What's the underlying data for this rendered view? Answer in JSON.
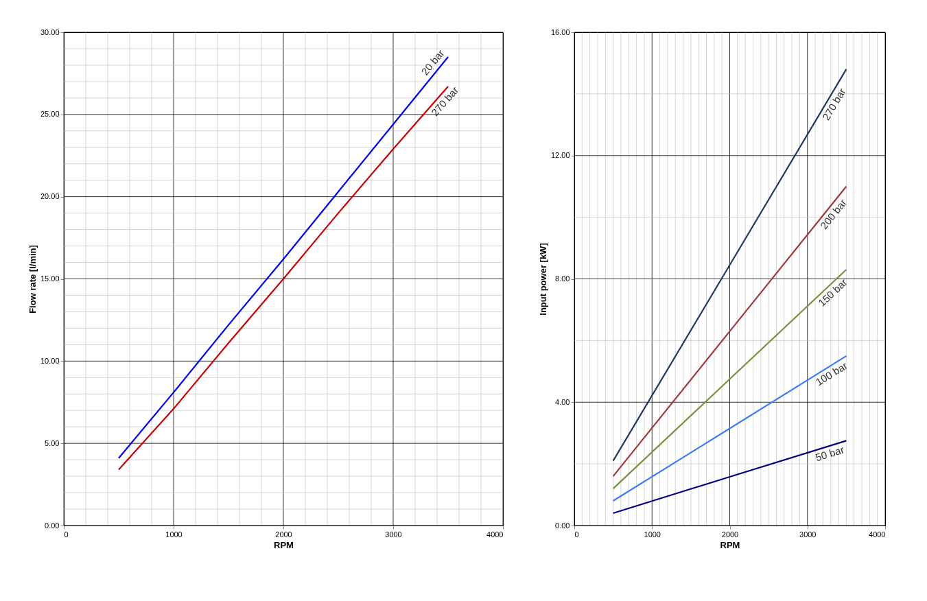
{
  "chart_data": [
    {
      "type": "line",
      "xlabel": "RPM",
      "ylabel": "Flow rate [l/min]",
      "xlim": [
        0,
        4000
      ],
      "ylim": [
        0,
        30
      ],
      "xticks": [
        0,
        {
          "value": 200,
          "label": null
        },
        {
          "value": 400,
          "label": null
        },
        {
          "value": 600,
          "label": null
        },
        {
          "value": 800,
          "label": null
        },
        1000,
        {
          "value": 1200,
          "label": null
        },
        {
          "value": 1400,
          "label": null
        },
        {
          "value": 1600,
          "label": null
        },
        {
          "value": 1800,
          "label": null
        },
        2000,
        {
          "value": 2200,
          "label": null
        },
        {
          "value": 2400,
          "label": null
        },
        {
          "value": 2600,
          "label": null
        },
        {
          "value": 2800,
          "label": null
        },
        3000,
        {
          "value": 3200,
          "label": null
        },
        {
          "value": 3400,
          "label": null
        },
        {
          "value": 3600,
          "label": null
        },
        {
          "value": 3800,
          "label": null
        },
        4000
      ],
      "yticks": [
        {
          "value": 0,
          "label": "0.00"
        },
        {
          "value": 1,
          "label": null
        },
        {
          "value": 2,
          "label": null
        },
        {
          "value": 3,
          "label": null
        },
        {
          "value": 4,
          "label": null
        },
        {
          "value": 5,
          "label": "5.00"
        },
        {
          "value": 6,
          "label": null
        },
        {
          "value": 7,
          "label": null
        },
        {
          "value": 8,
          "label": null
        },
        {
          "value": 9,
          "label": null
        },
        {
          "value": 10,
          "label": "10.00"
        },
        {
          "value": 11,
          "label": null
        },
        {
          "value": 12,
          "label": null
        },
        {
          "value": 13,
          "label": null
        },
        {
          "value": 14,
          "label": null
        },
        {
          "value": 15,
          "label": "15.00"
        },
        {
          "value": 16,
          "label": null
        },
        {
          "value": 17,
          "label": null
        },
        {
          "value": 18,
          "label": null
        },
        {
          "value": 19,
          "label": null
        },
        {
          "value": 20,
          "label": "20.00"
        },
        {
          "value": 21,
          "label": null
        },
        {
          "value": 22,
          "label": null
        },
        {
          "value": 23,
          "label": null
        },
        {
          "value": 24,
          "label": null
        },
        {
          "value": 25,
          "label": "25.00"
        },
        {
          "value": 26,
          "label": null
        },
        {
          "value": 27,
          "label": null
        },
        {
          "value": 28,
          "label": null
        },
        {
          "value": 29,
          "label": null
        },
        {
          "value": 30,
          "label": "30.00"
        }
      ],
      "grid": true,
      "legend": false,
      "marker": "none",
      "line_style": "solid",
      "series": [
        {
          "name": "20 bar",
          "color": "#0000ff",
          "x": [
            500,
            1000,
            1500,
            2000,
            2500,
            3000,
            3500
          ],
          "values": [
            4.1,
            8.1,
            12.2,
            16.2,
            20.3,
            24.4,
            28.5
          ]
        },
        {
          "name": "270 bar",
          "color": "#cc0000",
          "x": [
            500,
            1000,
            1500,
            2000,
            2500,
            3000,
            3500
          ],
          "values": [
            3.4,
            7.1,
            11.1,
            15.0,
            19.0,
            22.9,
            26.7
          ]
        }
      ]
    },
    {
      "type": "line",
      "xlabel": "RPM",
      "ylabel": "Input power [kW]",
      "xlim": [
        0,
        4000
      ],
      "ylim": [
        0,
        16
      ],
      "xticks": [
        0,
        {
          "value": 100,
          "label": null
        },
        {
          "value": 200,
          "label": null
        },
        {
          "value": 300,
          "label": null
        },
        {
          "value": 400,
          "label": null
        },
        {
          "value": 500,
          "label": null
        },
        {
          "value": 600,
          "label": null
        },
        {
          "value": 700,
          "label": null
        },
        {
          "value": 800,
          "label": null
        },
        {
          "value": 900,
          "label": null
        },
        1000,
        {
          "value": 1100,
          "label": null
        },
        {
          "value": 1200,
          "label": null
        },
        {
          "value": 1300,
          "label": null
        },
        {
          "value": 1400,
          "label": null
        },
        {
          "value": 1500,
          "label": null
        },
        {
          "value": 1600,
          "label": null
        },
        {
          "value": 1700,
          "label": null
        },
        {
          "value": 1800,
          "label": null
        },
        {
          "value": 1900,
          "label": null
        },
        2000,
        {
          "value": 2100,
          "label": null
        },
        {
          "value": 2200,
          "label": null
        },
        {
          "value": 2300,
          "label": null
        },
        {
          "value": 2400,
          "label": null
        },
        {
          "value": 2500,
          "label": null
        },
        {
          "value": 2600,
          "label": null
        },
        {
          "value": 2700,
          "label": null
        },
        {
          "value": 2800,
          "label": null
        },
        {
          "value": 2900,
          "label": null
        },
        3000,
        {
          "value": 3100,
          "label": null
        },
        {
          "value": 3200,
          "label": null
        },
        {
          "value": 3300,
          "label": null
        },
        {
          "value": 3400,
          "label": null
        },
        {
          "value": 3500,
          "label": null
        },
        {
          "value": 3600,
          "label": null
        },
        {
          "value": 3700,
          "label": null
        },
        {
          "value": 3800,
          "label": null
        },
        {
          "value": 3900,
          "label": null
        },
        4000
      ],
      "yticks": [
        {
          "value": 0,
          "label": "0.00"
        },
        {
          "value": 2,
          "label": null
        },
        {
          "value": 4,
          "label": "4.00"
        },
        {
          "value": 6,
          "label": null
        },
        {
          "value": 8,
          "label": "8.00"
        },
        {
          "value": 10,
          "label": null
        },
        {
          "value": 12,
          "label": "12.00"
        },
        {
          "value": 14,
          "label": null
        },
        {
          "value": 16,
          "label": "16.00"
        }
      ],
      "grid": true,
      "legend": false,
      "marker": "none",
      "line_style": "solid",
      "series": [
        {
          "name": "270 bar",
          "color": "#1f3864",
          "x": [
            500,
            2000,
            3500
          ],
          "values": [
            2.1,
            8.45,
            14.8
          ]
        },
        {
          "name": "200 bar",
          "color": "#a0373a",
          "x": [
            500,
            2000,
            3500
          ],
          "values": [
            1.6,
            6.3,
            11.0
          ]
        },
        {
          "name": "150 bar",
          "color": "#76933c",
          "x": [
            500,
            2000,
            3500
          ],
          "values": [
            1.2,
            4.75,
            8.3
          ]
        },
        {
          "name": "100 bar",
          "color": "#3a7bff",
          "x": [
            500,
            2000,
            3500
          ],
          "values": [
            0.8,
            3.15,
            5.5
          ]
        },
        {
          "name": "50 bar",
          "color": "#000080",
          "x": [
            500,
            2000,
            3500
          ],
          "values": [
            0.4,
            1.58,
            2.75
          ]
        }
      ]
    }
  ]
}
